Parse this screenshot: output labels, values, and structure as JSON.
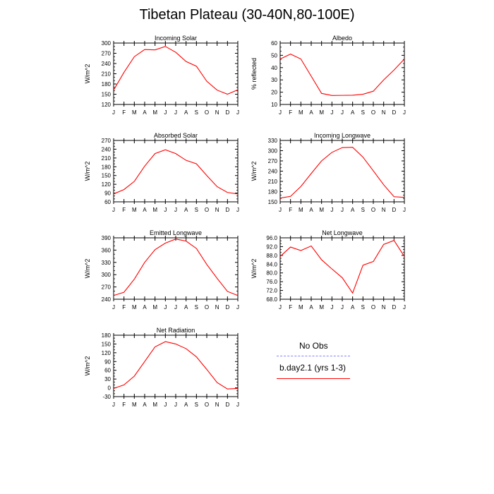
{
  "title": "Tibetan Plateau (30-40N,80-100E)",
  "months": [
    "J",
    "F",
    "M",
    "A",
    "M",
    "J",
    "J",
    "A",
    "S",
    "O",
    "N",
    "D",
    "J"
  ],
  "legend": {
    "obs_label": "No Obs",
    "model_label": "b.day2.1 (yrs 1-3)",
    "obs_color": "#8080ff",
    "model_color": "#ff0000"
  },
  "chart_data": [
    {
      "type": "line",
      "title": "Incoming Solar",
      "ylabel": "W/m^2",
      "ylim": [
        120,
        300
      ],
      "yticks": [
        "120",
        "150",
        "180",
        "210",
        "240",
        "270",
        "300"
      ],
      "series": [
        {
          "name": "b.day2.1 (yrs 1-3)",
          "values": [
            162,
            214,
            260,
            281,
            280,
            290,
            273,
            246,
            232,
            188,
            162,
            150,
            163
          ]
        }
      ]
    },
    {
      "type": "line",
      "title": "Albedo",
      "ylabel": "% reflected",
      "ylim": [
        10,
        60
      ],
      "yticks": [
        "10",
        "20",
        "30",
        "40",
        "50",
        "60"
      ],
      "series": [
        {
          "name": "b.day2.1 (yrs 1-3)",
          "values": [
            47,
            51,
            47,
            33,
            19,
            17.3,
            17.4,
            17.5,
            18.3,
            20.8,
            30,
            38,
            47
          ]
        }
      ]
    },
    {
      "type": "line",
      "title": "Absorbed Solar",
      "ylabel": "W/m^2",
      "ylim": [
        60,
        270
      ],
      "yticks": [
        "60",
        "90",
        "120",
        "150",
        "180",
        "210",
        "240",
        "270"
      ],
      "series": [
        {
          "name": "b.day2.1 (yrs 1-3)",
          "values": [
            87,
            102,
            130,
            182,
            225,
            238,
            225,
            202,
            190,
            150,
            112,
            92,
            87
          ]
        }
      ]
    },
    {
      "type": "line",
      "title": "Incoming Longwave",
      "ylabel": "W/m^2",
      "ylim": [
        150,
        330
      ],
      "yticks": [
        "150",
        "180",
        "210",
        "240",
        "270",
        "300",
        "330"
      ],
      "series": [
        {
          "name": "b.day2.1 (yrs 1-3)",
          "values": [
            161,
            166,
            195,
            233,
            270,
            295,
            309,
            310,
            281,
            241,
            200,
            165,
            163
          ]
        }
      ]
    },
    {
      "type": "line",
      "title": "Emitted Longwave",
      "ylabel": "W/m^2",
      "ylim": [
        240,
        390
      ],
      "yticks": [
        "240",
        "270",
        "300",
        "330",
        "360",
        "390"
      ],
      "series": [
        {
          "name": "b.day2.1 (yrs 1-3)",
          "values": [
            249,
            257,
            289,
            330,
            361,
            377,
            387,
            382,
            364,
            325,
            291,
            259,
            249
          ]
        }
      ]
    },
    {
      "type": "line",
      "title": "Net Longwave",
      "ylabel": "W/m^2",
      "ylim": [
        68,
        96
      ],
      "yticks": [
        "68.0",
        "72.0",
        "76.0",
        "80.0",
        "84.0",
        "88.0",
        "92.0",
        "96.0"
      ],
      "series": [
        {
          "name": "b.day2.1 (yrs 1-3)",
          "values": [
            87.5,
            91.8,
            90.2,
            92.3,
            86.0,
            81.8,
            77.8,
            70.8,
            83.5,
            85.2,
            93.0,
            94.8,
            87.5
          ]
        }
      ]
    },
    {
      "type": "line",
      "title": "Net Radiation",
      "ylabel": "W/m^2",
      "ylim": [
        -30,
        180
      ],
      "yticks": [
        "-30",
        "0",
        "30",
        "60",
        "90",
        "120",
        "150",
        "180"
      ],
      "series": [
        {
          "name": "b.day2.1 (yrs 1-3)",
          "values": [
            -2,
            10,
            40,
            90,
            140,
            158,
            150,
            134,
            106,
            63,
            18,
            -4,
            -2
          ]
        }
      ]
    }
  ]
}
